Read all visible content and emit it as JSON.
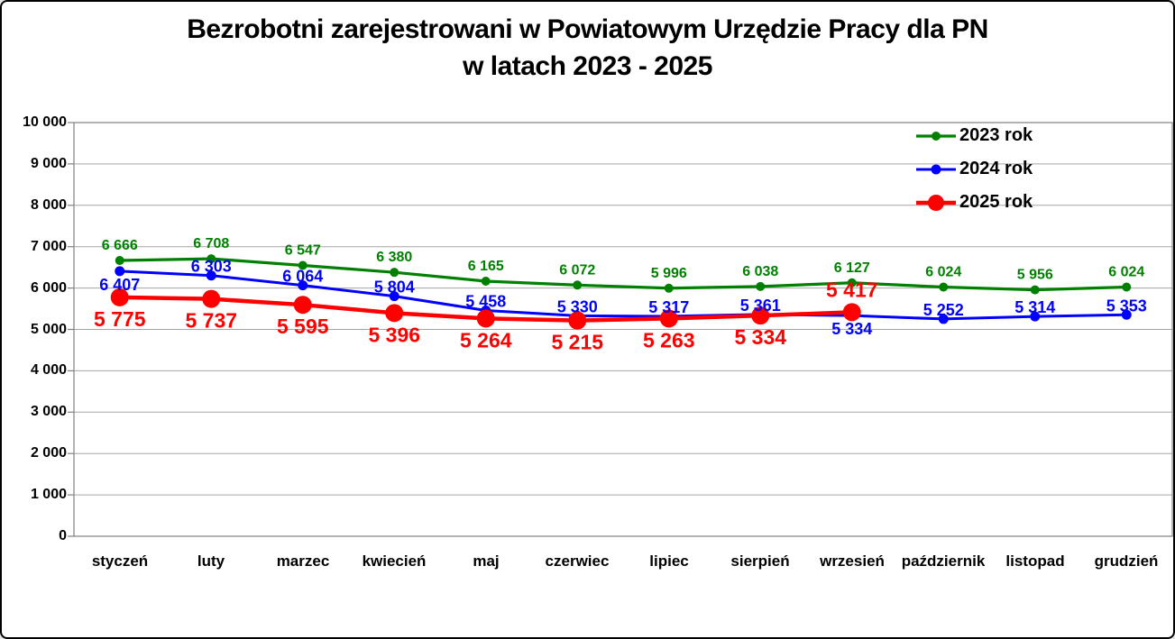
{
  "title": {
    "line1": "Bezrobotni zarejestrowani w Powiatowym Urzędzie Pracy dla PN",
    "line2": "w latach 2023 - 2025"
  },
  "chart_data": {
    "type": "line",
    "title": "Bezrobotni zarejestrowani w Powiatowym Urzędzie Pracy dla PN w latach 2023 - 2025",
    "categories": [
      "styczeń",
      "luty",
      "marzec",
      "kwiecień",
      "maj",
      "czerwiec",
      "lipiec",
      "sierpień",
      "wrzesień",
      "październik",
      "listopad",
      "grudzień"
    ],
    "series": [
      {
        "name": "2023 rok",
        "color": "#008000",
        "values": [
          6666,
          6708,
          6547,
          6380,
          6165,
          6072,
          5996,
          6038,
          6127,
          6024,
          5956,
          6024
        ]
      },
      {
        "name": "2024 rok",
        "color": "#0000ff",
        "values": [
          6407,
          6303,
          6064,
          5804,
          5458,
          5330,
          5317,
          5361,
          5334,
          5252,
          5314,
          5353
        ]
      },
      {
        "name": "2025 rok",
        "color": "#ff0000",
        "values": [
          5775,
          5737,
          5595,
          5396,
          5264,
          5215,
          5263,
          5334,
          5417
        ]
      }
    ],
    "ylim": [
      0,
      10000
    ],
    "ytick_step": 1000,
    "ytick_labels": [
      "0",
      "1 000",
      "2 000",
      "3 000",
      "4 000",
      "5 000",
      "6 000",
      "7 000",
      "8 000",
      "9 000",
      "10 000"
    ],
    "grid": true,
    "legend_position": "top-right",
    "data_labels": true,
    "axis_color": "#808080",
    "gridline_color": "#a6a6a6",
    "background_color": "#ffffff",
    "frame_border_color": "#000000"
  }
}
